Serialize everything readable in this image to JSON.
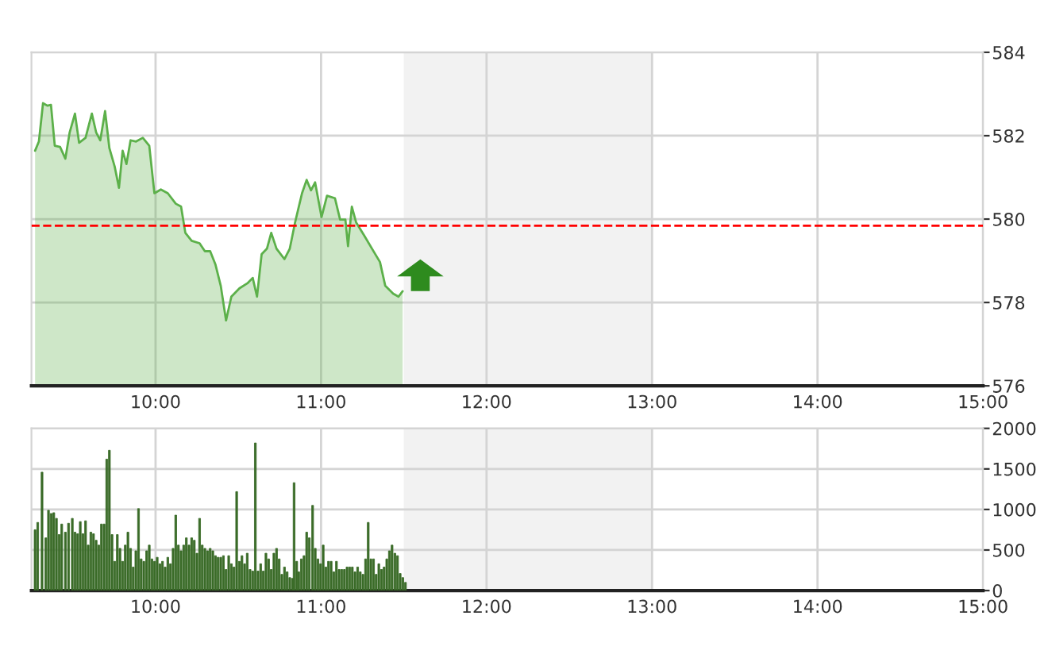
{
  "chart_data": [
    {
      "type": "area",
      "xlim": [
        9.25,
        15
      ],
      "xticks": [
        {
          "value": 10,
          "label": "10:00"
        },
        {
          "value": 11,
          "label": "11:00"
        },
        {
          "value": 12,
          "label": "12:00"
        },
        {
          "value": 13,
          "label": "13:00"
        },
        {
          "value": 14,
          "label": "14:00"
        },
        {
          "value": 15,
          "label": "15:00"
        }
      ],
      "ylim": [
        576,
        584
      ],
      "yticks": [
        576,
        578,
        580,
        582,
        584
      ],
      "grid": true,
      "ref_lines": [
        {
          "axis": "y",
          "value": 579.84,
          "color": "#ff0000",
          "line_style": "dashed"
        }
      ],
      "bands": [
        {
          "axis": "x",
          "from": 11.5,
          "to": 13,
          "color": "#f2f2f2"
        }
      ],
      "series": [
        {
          "color": "#5cb04a",
          "x": [
            9.272,
            9.295,
            9.32,
            9.346,
            9.368,
            9.391,
            9.423,
            9.455,
            9.481,
            9.513,
            9.538,
            9.577,
            9.615,
            9.641,
            9.666,
            9.695,
            9.721,
            9.753,
            9.779,
            9.801,
            9.824,
            9.849,
            9.882,
            9.923,
            9.962,
            9.993,
            10.032,
            10.074,
            10.122,
            10.154,
            10.18,
            10.218,
            10.266,
            10.298,
            10.33,
            10.362,
            10.394,
            10.426,
            10.458,
            10.507,
            10.555,
            10.587,
            10.613,
            10.641,
            10.673,
            10.699,
            10.731,
            10.779,
            10.811,
            10.843,
            10.885,
            10.913,
            10.939,
            10.964,
            11.003,
            11.036,
            11.084,
            11.115,
            11.147,
            11.163,
            11.186,
            11.212,
            11.26,
            11.308,
            11.356,
            11.388,
            11.436,
            11.468,
            11.493
          ],
          "values": [
            581.64,
            581.86,
            582.78,
            582.72,
            582.74,
            581.76,
            581.73,
            581.45,
            582.08,
            582.53,
            581.83,
            581.95,
            582.53,
            582.08,
            581.89,
            582.59,
            581.7,
            581.26,
            580.75,
            581.64,
            581.32,
            581.89,
            581.86,
            581.95,
            581.76,
            580.62,
            580.71,
            580.62,
            580.37,
            580.3,
            579.67,
            579.48,
            579.42,
            579.23,
            579.23,
            578.91,
            578.4,
            577.57,
            578.14,
            578.34,
            578.46,
            578.59,
            578.14,
            579.16,
            579.29,
            579.67,
            579.29,
            579.04,
            579.29,
            579.92,
            580.62,
            580.94,
            580.69,
            580.88,
            580.05,
            580.56,
            580.5,
            579.99,
            579.99,
            579.35,
            580.3,
            579.92,
            579.61,
            579.29,
            578.97,
            578.4,
            578.21,
            578.14,
            578.27
          ]
        }
      ]
    },
    {
      "type": "bar",
      "xlim": [
        9.25,
        15
      ],
      "xticks": [
        {
          "value": 10,
          "label": "10:00"
        },
        {
          "value": 11,
          "label": "11:00"
        },
        {
          "value": 12,
          "label": "12:00"
        },
        {
          "value": 13,
          "label": "13:00"
        },
        {
          "value": 14,
          "label": "14:00"
        },
        {
          "value": 15,
          "label": "15:00"
        }
      ],
      "ylim": [
        0,
        2000
      ],
      "yticks": [
        0,
        500,
        1000,
        1500,
        2000
      ],
      "grid": true,
      "bands": [
        {
          "axis": "x",
          "from": 11.5,
          "to": 13,
          "color": "#f2f2f2"
        }
      ],
      "series": [
        {
          "color": "#3a6b28",
          "x": [
            9.272,
            9.288,
            9.314,
            9.337,
            9.353,
            9.369,
            9.385,
            9.401,
            9.417,
            9.433,
            9.455,
            9.474,
            9.497,
            9.513,
            9.529,
            9.545,
            9.561,
            9.577,
            9.593,
            9.609,
            9.625,
            9.641,
            9.657,
            9.673,
            9.689,
            9.705,
            9.721,
            9.737,
            9.753,
            9.769,
            9.785,
            9.801,
            9.817,
            9.833,
            9.849,
            9.865,
            9.881,
            9.897,
            9.913,
            9.929,
            9.946,
            9.962,
            9.978,
            9.994,
            10.01,
            10.026,
            10.042,
            10.058,
            10.074,
            10.09,
            10.106,
            10.122,
            10.138,
            10.154,
            10.17,
            10.186,
            10.202,
            10.218,
            10.234,
            10.25,
            10.266,
            10.282,
            10.298,
            10.314,
            10.33,
            10.346,
            10.362,
            10.378,
            10.394,
            10.41,
            10.426,
            10.442,
            10.458,
            10.474,
            10.49,
            10.506,
            10.522,
            10.538,
            10.554,
            10.571,
            10.587,
            10.603,
            10.619,
            10.635,
            10.651,
            10.667,
            10.683,
            10.699,
            10.715,
            10.731,
            10.747,
            10.763,
            10.779,
            10.795,
            10.811,
            10.827,
            10.837,
            10.853,
            10.865,
            10.881,
            10.897,
            10.913,
            10.929,
            10.949,
            10.965,
            10.981,
            10.997,
            11.013,
            11.029,
            11.045,
            11.061,
            11.077,
            11.093,
            11.109,
            11.125,
            11.141,
            11.157,
            11.173,
            11.189,
            11.205,
            11.221,
            11.237,
            11.253,
            11.269,
            11.285,
            11.301,
            11.317,
            11.333,
            11.349,
            11.365,
            11.381,
            11.397,
            11.413,
            11.429,
            11.446,
            11.462,
            11.478,
            11.494,
            11.51
          ],
          "values": [
            750,
            840,
            1460,
            650,
            990,
            950,
            960,
            890,
            690,
            820,
            720,
            830,
            890,
            720,
            700,
            850,
            700,
            860,
            560,
            720,
            700,
            620,
            560,
            820,
            820,
            1620,
            1730,
            690,
            360,
            690,
            520,
            360,
            560,
            720,
            520,
            290,
            490,
            1010,
            390,
            360,
            490,
            560,
            390,
            360,
            410,
            330,
            360,
            290,
            410,
            330,
            520,
            930,
            560,
            490,
            560,
            650,
            560,
            650,
            620,
            460,
            890,
            560,
            520,
            490,
            520,
            490,
            430,
            410,
            410,
            430,
            260,
            430,
            330,
            290,
            1220,
            360,
            430,
            330,
            460,
            260,
            240,
            1820,
            240,
            330,
            240,
            460,
            390,
            260,
            460,
            520,
            390,
            200,
            290,
            230,
            160,
            150,
            1330,
            360,
            230,
            390,
            430,
            720,
            650,
            1050,
            520,
            390,
            330,
            560,
            290,
            360,
            360,
            230,
            360,
            260,
            260,
            260,
            290,
            290,
            290,
            230,
            290,
            230,
            200,
            390,
            840,
            390,
            390,
            200,
            330,
            260,
            290,
            390,
            490,
            560,
            460,
            430,
            210,
            160,
            100
          ]
        }
      ]
    }
  ]
}
